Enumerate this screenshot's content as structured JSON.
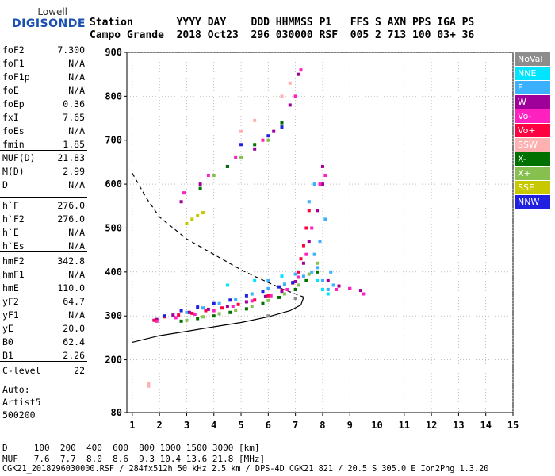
{
  "logo": {
    "line1": "Lowell",
    "line2": "DIGISONDE"
  },
  "header": {
    "row1": "Station       YYYY DAY    DDD HHMMSS P1   FFS S AXN PPS IGA PS",
    "row2": "Campo Grande  2018 Oct23  296 030000 RSF  005 2 713 100 03+ 36"
  },
  "params_group1": [
    {
      "k": "foF2",
      "v": "7.300"
    },
    {
      "k": "foF1",
      "v": "N/A"
    },
    {
      "k": "foF1p",
      "v": "N/A"
    },
    {
      "k": "foE",
      "v": "N/A"
    },
    {
      "k": "foEp",
      "v": "0.36"
    },
    {
      "k": "fxI",
      "v": "7.65"
    },
    {
      "k": "foEs",
      "v": "N/A"
    },
    {
      "k": "fmin",
      "v": "1.85"
    }
  ],
  "params_group2": [
    {
      "k": "MUF(D)",
      "v": "21.83"
    },
    {
      "k": "M(D)",
      "v": "2.99"
    },
    {
      "k": "D",
      "v": "N/A"
    }
  ],
  "params_group3": [
    {
      "k": "h`F",
      "v": "276.0"
    },
    {
      "k": "h`F2",
      "v": "276.0"
    },
    {
      "k": "h`E",
      "v": "N/A"
    },
    {
      "k": "h`Es",
      "v": "N/A"
    }
  ],
  "params_group4": [
    {
      "k": "hmF2",
      "v": "342.8"
    },
    {
      "k": "hmF1",
      "v": "N/A"
    },
    {
      "k": "hmE",
      "v": "110.0"
    },
    {
      "k": "yF2",
      "v": "64.7"
    },
    {
      "k": "yF1",
      "v": "N/A"
    },
    {
      "k": "yE",
      "v": "20.0"
    },
    {
      "k": "B0",
      "v": "62.4"
    },
    {
      "k": "B1",
      "v": "2.26"
    }
  ],
  "params_group5": [
    {
      "k": "C-level",
      "v": "22"
    }
  ],
  "auto": [
    "Auto:",
    "Artist5",
    "500200"
  ],
  "footer": {
    "row1": "D     100  200  400  600  800 1000 1500 3000 [km]",
    "row2": "MUF   7.6  7.7  8.0  8.6  9.3 10.4 13.6 21.8 [MHz]",
    "row3": "CGK21_2018296030000.RSF / 284fx512h 50 kHz 2.5 km / DPS-4D CGK21 821 / 20.5 S 305.0 E Ion2Png 1.3.20"
  },
  "legend": [
    {
      "label": "NoVal",
      "color": "#8c8c8c"
    },
    {
      "label": "NNE",
      "color": "#00e5ff"
    },
    {
      "label": "E",
      "color": "#3ab0ff"
    },
    {
      "label": "W",
      "color": "#a0009a"
    },
    {
      "label": "Vo-",
      "color": "#ff20c0"
    },
    {
      "label": "Vo+",
      "color": "#ff0040"
    },
    {
      "label": "SSW",
      "color": "#ffb0b0"
    },
    {
      "label": "X-",
      "color": "#007000"
    },
    {
      "label": "X+",
      "color": "#88c050"
    },
    {
      "label": "SSE",
      "color": "#c8c800"
    },
    {
      "label": "NNW",
      "color": "#2020e0"
    }
  ],
  "chart_data": {
    "type": "scatter",
    "title": "",
    "xlabel": "",
    "ylabel": "",
    "xlim": [
      0.8,
      15
    ],
    "ylim": [
      80,
      900
    ],
    "x_ticks": [
      1,
      2,
      3,
      4,
      5,
      6,
      7,
      8,
      9,
      10,
      11,
      12,
      13,
      14,
      15
    ],
    "y_ticks": [
      80,
      200,
      300,
      400,
      500,
      600,
      700,
      800,
      900
    ],
    "grid": "dotted",
    "legend_position": "right",
    "series": [
      {
        "name": "E",
        "color": "#3ab0ff",
        "points": [
          [
            3.0,
            308
          ],
          [
            3.6,
            318
          ],
          [
            4.2,
            328
          ],
          [
            4.8,
            338
          ],
          [
            5.4,
            350
          ],
          [
            6.0,
            362
          ],
          [
            6.6,
            372
          ],
          [
            7.3,
            390
          ],
          [
            7.6,
            400
          ],
          [
            7.8,
            410
          ],
          [
            8.0,
            380
          ],
          [
            8.2,
            360
          ],
          [
            7.7,
            440
          ],
          [
            7.9,
            470
          ],
          [
            8.1,
            520
          ],
          [
            8.3,
            400
          ],
          [
            8.4,
            370
          ],
          [
            7.5,
            560
          ],
          [
            7.7,
            600
          ],
          [
            6.0,
            380
          ],
          [
            6.5,
            390
          ],
          [
            7.0,
            395
          ]
        ]
      },
      {
        "name": "Vo+",
        "color": "#ff0040",
        "points": [
          [
            1.8,
            290
          ],
          [
            2.2,
            298
          ],
          [
            2.7,
            302
          ],
          [
            3.2,
            306
          ],
          [
            3.7,
            312
          ],
          [
            4.3,
            318
          ],
          [
            4.9,
            326
          ],
          [
            5.5,
            336
          ],
          [
            6.0,
            346
          ],
          [
            6.5,
            358
          ],
          [
            6.9,
            375
          ],
          [
            7.1,
            400
          ],
          [
            7.2,
            430
          ],
          [
            7.3,
            460
          ],
          [
            7.4,
            500
          ],
          [
            7.5,
            540
          ]
        ]
      },
      {
        "name": "W",
        "color": "#a0009a",
        "points": [
          [
            1.9,
            292
          ],
          [
            2.5,
            302
          ],
          [
            3.1,
            308
          ],
          [
            3.8,
            315
          ],
          [
            4.5,
            322
          ],
          [
            5.2,
            332
          ],
          [
            5.9,
            344
          ],
          [
            6.5,
            356
          ],
          [
            7.0,
            378
          ],
          [
            7.3,
            420
          ],
          [
            7.5,
            470
          ],
          [
            7.8,
            540
          ],
          [
            8.0,
            600
          ],
          [
            8.0,
            640
          ],
          [
            8.2,
            380
          ],
          [
            8.6,
            368
          ],
          [
            9.0,
            362
          ],
          [
            9.4,
            358
          ],
          [
            2.8,
            560
          ],
          [
            3.5,
            600
          ],
          [
            4.5,
            640
          ],
          [
            5.5,
            680
          ],
          [
            6.2,
            720
          ],
          [
            6.8,
            780
          ],
          [
            7.1,
            850
          ]
        ]
      },
      {
        "name": "Vo-",
        "color": "#ff20c0",
        "points": [
          [
            1.9,
            288
          ],
          [
            2.6,
            296
          ],
          [
            3.3,
            304
          ],
          [
            4.0,
            312
          ],
          [
            4.7,
            322
          ],
          [
            5.4,
            334
          ],
          [
            6.1,
            346
          ],
          [
            6.7,
            360
          ],
          [
            7.1,
            388
          ],
          [
            7.4,
            440
          ],
          [
            7.6,
            500
          ],
          [
            7.9,
            600
          ],
          [
            8.1,
            620
          ],
          [
            8.5,
            360
          ],
          [
            9.0,
            362
          ],
          [
            9.5,
            350
          ],
          [
            2.9,
            580
          ],
          [
            3.8,
            620
          ],
          [
            4.8,
            660
          ],
          [
            5.8,
            700
          ],
          [
            6.5,
            740
          ],
          [
            7.0,
            800
          ],
          [
            7.2,
            860
          ]
        ]
      },
      {
        "name": "NNW",
        "color": "#2020e0",
        "points": [
          [
            2.2,
            300
          ],
          [
            2.8,
            312
          ],
          [
            3.4,
            320
          ],
          [
            4.0,
            328
          ],
          [
            4.6,
            336
          ],
          [
            5.2,
            346
          ],
          [
            5.8,
            356
          ],
          [
            6.4,
            366
          ],
          [
            6.9,
            376
          ],
          [
            5.0,
            690
          ],
          [
            6.0,
            710
          ],
          [
            6.5,
            730
          ]
        ]
      },
      {
        "name": "X-",
        "color": "#007000",
        "points": [
          [
            2.8,
            288
          ],
          [
            3.4,
            294
          ],
          [
            4.0,
            300
          ],
          [
            4.6,
            308
          ],
          [
            5.2,
            316
          ],
          [
            5.8,
            328
          ],
          [
            6.4,
            342
          ],
          [
            7.0,
            360
          ],
          [
            7.4,
            380
          ],
          [
            7.8,
            400
          ],
          [
            3.5,
            590
          ],
          [
            4.5,
            640
          ],
          [
            5.5,
            690
          ],
          [
            6.5,
            740
          ]
        ]
      },
      {
        "name": "X+",
        "color": "#88c050",
        "points": [
          [
            3.0,
            290
          ],
          [
            3.6,
            298
          ],
          [
            4.2,
            305
          ],
          [
            4.8,
            313
          ],
          [
            5.4,
            322
          ],
          [
            6.0,
            335
          ],
          [
            6.6,
            350
          ],
          [
            7.1,
            370
          ],
          [
            7.5,
            395
          ],
          [
            7.8,
            420
          ],
          [
            4.0,
            620
          ],
          [
            5.0,
            660
          ],
          [
            6.0,
            700
          ]
        ]
      },
      {
        "name": "SSW",
        "color": "#ffb0b0",
        "points": [
          [
            1.6,
            140
          ],
          [
            1.6,
            145
          ],
          [
            5.0,
            720
          ],
          [
            5.5,
            745
          ],
          [
            6.5,
            800
          ],
          [
            6.8,
            830
          ]
        ]
      },
      {
        "name": "NNE",
        "color": "#00e5ff",
        "points": [
          [
            4.5,
            370
          ],
          [
            5.5,
            380
          ],
          [
            6.5,
            390
          ],
          [
            7.8,
            380
          ],
          [
            8.0,
            360
          ],
          [
            8.2,
            350
          ]
        ]
      },
      {
        "name": "SSE",
        "color": "#c8c800",
        "points": [
          [
            3.0,
            510
          ],
          [
            3.2,
            520
          ],
          [
            3.4,
            528
          ],
          [
            3.6,
            535
          ]
        ]
      },
      {
        "name": "NoVal",
        "color": "#8c8c8c",
        "points": [
          [
            6.0,
            300
          ],
          [
            7.0,
            340
          ]
        ]
      }
    ],
    "lines": [
      {
        "style": "dashed",
        "points": [
          [
            1.0,
            625
          ],
          [
            1.5,
            570
          ],
          [
            2.0,
            525
          ],
          [
            3.0,
            475
          ],
          [
            4.0,
            440
          ],
          [
            5.0,
            405
          ],
          [
            5.5,
            390
          ],
          [
            6.0,
            376
          ],
          [
            6.5,
            362
          ],
          [
            7.0,
            350
          ],
          [
            7.3,
            343
          ]
        ]
      },
      {
        "style": "solid",
        "points": [
          [
            1.0,
            240
          ],
          [
            2.0,
            255
          ],
          [
            3.0,
            265
          ],
          [
            4.0,
            275
          ],
          [
            5.0,
            285
          ],
          [
            6.0,
            298
          ],
          [
            6.8,
            312
          ],
          [
            7.2,
            325
          ],
          [
            7.3,
            342
          ]
        ]
      }
    ]
  }
}
